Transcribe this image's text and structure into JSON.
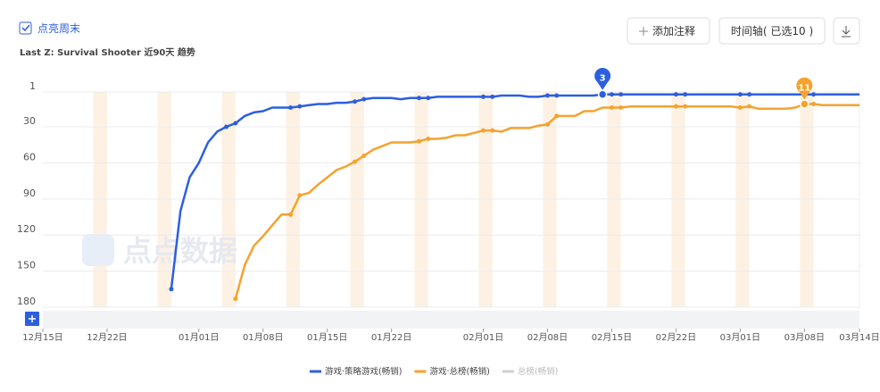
{
  "header": {
    "checkbox": "点亮周末",
    "subtitle": "Last Z: Survival Shooter 近90天 趋势",
    "buttons": [
      "添加注释",
      "时间轴( 已选10 )"
    ],
    "watermark": "点点数据"
  },
  "chart_data": {
    "type": "line",
    "y_inverted": true,
    "highlight_weekends": true,
    "grid": true,
    "ylim": [
      1,
      180
    ],
    "yticks": [
      1,
      30,
      60,
      90,
      120,
      150,
      180
    ],
    "xticks": [
      "12月15日",
      "12月22日",
      "01月01日",
      "01月08日",
      "01月15日",
      "01月22日",
      "02月01日",
      "02月08日",
      "02月15日",
      "02月22日",
      "03月01日",
      "03月08日",
      "03月14日"
    ],
    "x": [
      "12月29日",
      "12月30日",
      "12月31日",
      "01月01日",
      "01月02日",
      "01月03日",
      "01月04日",
      "01月05日",
      "01月06日",
      "01月07日",
      "01月08日",
      "01月09日",
      "01月10日",
      "01月11日",
      "01月12日",
      "01月13日",
      "01月14日",
      "01月15日",
      "01月16日",
      "01月17日",
      "01月18日",
      "01月19日",
      "01月20日",
      "01月21日",
      "01月22日",
      "01月23日",
      "01月24日",
      "01月25日",
      "01月26日",
      "01月27日",
      "01月28日",
      "01月29日",
      "01月30日",
      "01月31日",
      "02月01日",
      "02月02日",
      "02月03日",
      "02月04日",
      "02月05日",
      "02月06日",
      "02月07日",
      "02月08日",
      "02月09日",
      "02月10日",
      "02月11日",
      "02月12日",
      "02月13日",
      "02月14日",
      "02月15日",
      "02月16日",
      "02月17日",
      "02月18日",
      "02月19日",
      "02月20日",
      "02月21日",
      "02月22日",
      "02月23日",
      "02月24日",
      "02月25日",
      "02月26日",
      "02月27日",
      "02月28日",
      "03月01日",
      "03月02日",
      "03月03日",
      "03月04日",
      "03月05日",
      "03月06日",
      "03月07日",
      "03月08日",
      "03月09日",
      "03月10日",
      "03月11日",
      "03月12日",
      "03月13日",
      "03月14日"
    ],
    "series": [
      {
        "name": "游戏·策略游戏(畅销)",
        "color": "#2c5fe0",
        "values": [
          165,
          100,
          72,
          60,
          43,
          34,
          30,
          27,
          21,
          18,
          17,
          14,
          14,
          14,
          13,
          12,
          11,
          11,
          10,
          10,
          9,
          7,
          6,
          6,
          6,
          7,
          6,
          6,
          6,
          5,
          5,
          5,
          5,
          5,
          5,
          5,
          4,
          4,
          4,
          5,
          5,
          4,
          4,
          4,
          4,
          4,
          4,
          3,
          3,
          3,
          3,
          3,
          3,
          3,
          3,
          3,
          3,
          3,
          3,
          3,
          3,
          3,
          3,
          3,
          3,
          3,
          3,
          3,
          3,
          3,
          3,
          3,
          3,
          3,
          3,
          3
        ]
      },
      {
        "name": "游戏·总榜(畅销)",
        "color": "#f5a22e",
        "values": [
          null,
          null,
          null,
          null,
          null,
          null,
          null,
          173,
          145,
          129,
          121,
          112,
          103,
          103,
          87,
          85,
          78,
          72,
          66,
          63,
          59,
          54,
          49,
          46,
          43,
          43,
          43,
          42,
          40,
          40,
          39,
          37,
          37,
          35,
          33,
          33,
          34,
          31,
          31,
          31,
          29,
          28,
          21,
          21,
          21,
          17,
          17,
          14,
          14,
          14,
          13,
          13,
          13,
          13,
          13,
          13,
          13,
          13,
          13,
          13,
          13,
          13,
          14,
          13,
          15,
          15,
          15,
          15,
          14,
          11,
          11,
          12,
          12,
          12,
          12,
          12
        ]
      },
      {
        "name": "总榜(畅销)",
        "color": "#cfcfcf",
        "hidden": true
      }
    ],
    "annotations": [
      {
        "series": 0,
        "x": "02月14日"
      },
      {
        "series": 1,
        "x": "03月08日"
      }
    ]
  }
}
